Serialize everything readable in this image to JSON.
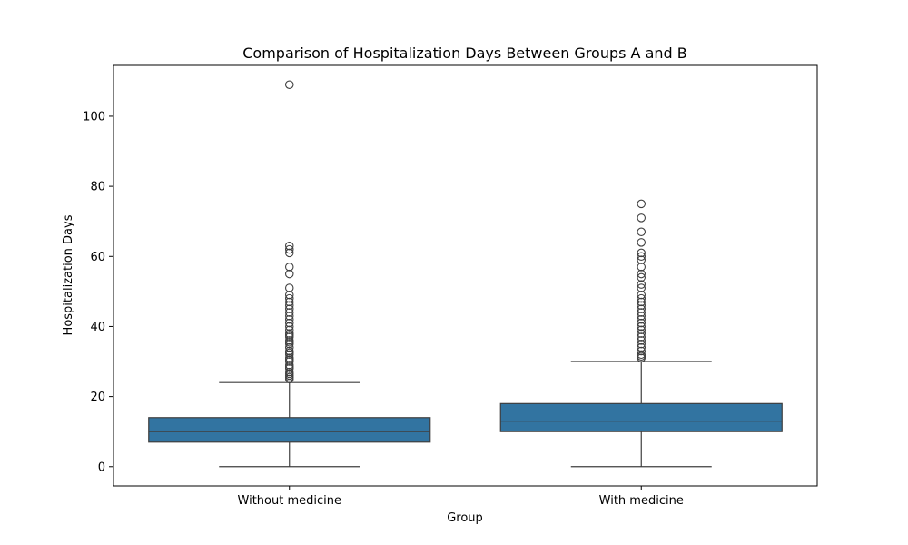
{
  "chart_data": {
    "type": "box",
    "title": "Comparison of Hospitalization Days Between Groups A and B",
    "xlabel": "Group",
    "ylabel": "Hospitalization Days",
    "ylim": [
      -5.5,
      114.5
    ],
    "yticks": [
      0,
      20,
      40,
      60,
      80,
      100
    ],
    "grid": false,
    "legend": "none",
    "box_color": "#3274a1",
    "line_color": "#3f3f3f",
    "groups": [
      {
        "label": "Without medicine",
        "whisker_low": 0,
        "q1": 7,
        "median": 10,
        "q3": 14,
        "whisker_high": 24,
        "outliers": [
          25,
          25.5,
          26,
          26.5,
          27,
          28,
          28.5,
          29,
          30,
          30.5,
          31,
          32,
          32.5,
          33,
          34,
          35,
          35.5,
          36,
          37,
          37.5,
          38,
          39,
          40,
          41,
          42,
          43,
          44,
          45,
          46,
          47,
          48,
          49,
          51,
          55,
          57,
          61,
          62,
          63,
          109
        ]
      },
      {
        "label": "With medicine",
        "whisker_low": 0,
        "q1": 10,
        "median": 13,
        "q3": 18,
        "whisker_high": 30,
        "outliers": [
          31,
          31.5,
          32,
          33,
          34,
          35,
          36,
          37,
          38,
          39,
          40,
          41,
          42,
          43,
          44,
          45,
          46,
          47,
          48,
          49,
          51,
          52,
          54,
          55,
          57,
          59,
          60,
          61,
          64,
          67,
          71,
          75
        ]
      }
    ]
  }
}
